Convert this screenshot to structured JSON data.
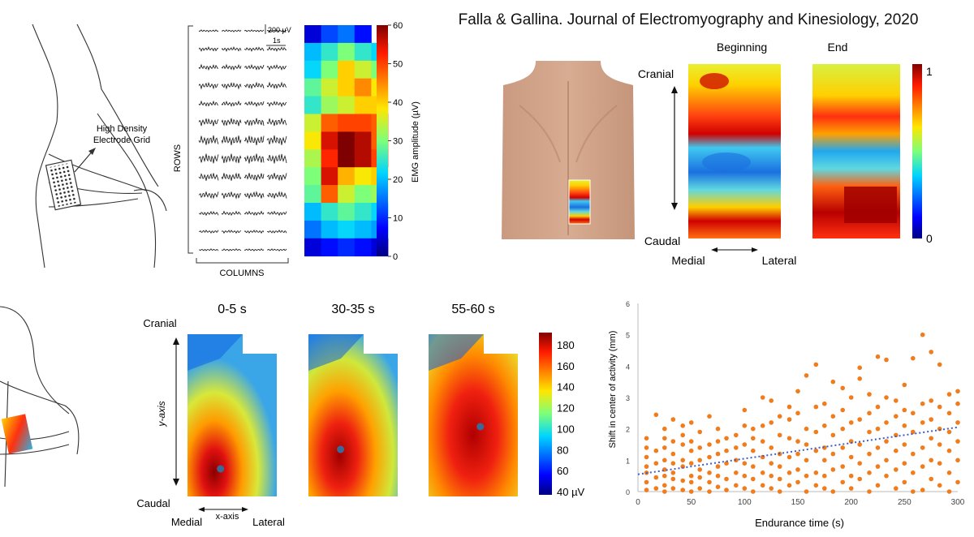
{
  "citation": "Falla & Gallina. Journal of Electromyography and Kinesiology, 2020",
  "panel_a": {
    "grid_label_line1": "High Density",
    "grid_label_line2": "Electrode Grid",
    "rows_label": "ROWS",
    "columns_label": "COLUMNS",
    "scale_uv": "200 µV",
    "scale_s": "1s",
    "colorbar": {
      "label": "EMG amplitude (µV)",
      "ticks": [
        "60",
        "50",
        "40",
        "30",
        "20",
        "10",
        "0"
      ]
    },
    "heatmap": [
      [
        5,
        12,
        15,
        8,
        0
      ],
      [
        20,
        25,
        30,
        25,
        22
      ],
      [
        22,
        30,
        40,
        35,
        30
      ],
      [
        28,
        35,
        40,
        45,
        38
      ],
      [
        25,
        32,
        35,
        40,
        40
      ],
      [
        35,
        48,
        50,
        50,
        48
      ],
      [
        38,
        55,
        60,
        57,
        48
      ],
      [
        33,
        52,
        60,
        57,
        50
      ],
      [
        30,
        55,
        42,
        38,
        40
      ],
      [
        28,
        48,
        35,
        30,
        32
      ],
      [
        20,
        25,
        28,
        25,
        22
      ],
      [
        15,
        20,
        22,
        20,
        18
      ],
      [
        5,
        8,
        10,
        8,
        5
      ]
    ]
  },
  "panel_b": {
    "cranial": "Cranial",
    "caudal": "Caudal",
    "medial": "Medial",
    "lateral": "Lateral",
    "beginning": "Beginning",
    "end": "End",
    "colorbar_max": "1",
    "colorbar_min": "0"
  },
  "panel_c": {
    "cranial": "Cranial",
    "caudal": "Caudal",
    "medial": "Medial",
    "lateral": "Lateral",
    "x_axis": "x-axis",
    "y_axis": "y-axis",
    "maps": [
      {
        "title": "0-5 s",
        "centroid": [
          0.37,
          0.83
        ]
      },
      {
        "title": "30-35 s",
        "centroid": [
          0.36,
          0.71
        ]
      },
      {
        "title": "55-60 s",
        "centroid": [
          0.58,
          0.57
        ]
      }
    ],
    "colorbar_ticks": [
      "180",
      "160",
      "140",
      "120",
      "100",
      "80",
      "60",
      "40 µV"
    ]
  },
  "chart_data": {
    "type": "scatter",
    "xlabel": "Endurance time  (s)",
    "ylabel": "Shift in center of activity (mm)",
    "xlim": [
      0,
      300
    ],
    "ylim": [
      0,
      6
    ],
    "xticks": [
      "0",
      "50",
      "100",
      "150",
      "200",
      "250",
      "300"
    ],
    "yticks": [
      "0",
      "1",
      "2",
      "3",
      "4",
      "5",
      "6"
    ],
    "grid": false,
    "trendline": {
      "x": [
        0,
        300
      ],
      "y": [
        0.55,
        2.05
      ]
    },
    "points": [
      [
        8,
        0.05
      ],
      [
        8,
        0.3
      ],
      [
        8,
        0.6
      ],
      [
        8,
        0.8
      ],
      [
        8,
        1.1
      ],
      [
        8,
        1.4
      ],
      [
        8,
        1.7
      ],
      [
        17,
        0.1
      ],
      [
        17,
        0.45
      ],
      [
        17,
        0.9
      ],
      [
        17,
        1.3
      ],
      [
        17,
        2.45
      ],
      [
        25,
        0.0
      ],
      [
        25,
        0.2
      ],
      [
        25,
        0.5
      ],
      [
        25,
        0.7
      ],
      [
        25,
        1.0
      ],
      [
        25,
        1.4
      ],
      [
        25,
        1.7
      ],
      [
        25,
        2.0
      ],
      [
        33,
        0.1
      ],
      [
        33,
        0.4
      ],
      [
        33,
        0.6
      ],
      [
        33,
        0.9
      ],
      [
        33,
        1.2
      ],
      [
        33,
        1.6
      ],
      [
        33,
        2.3
      ],
      [
        42,
        0.05
      ],
      [
        42,
        0.35
      ],
      [
        42,
        0.8
      ],
      [
        42,
        1.0
      ],
      [
        42,
        1.5
      ],
      [
        42,
        1.8
      ],
      [
        42,
        2.1
      ],
      [
        50,
        0.0
      ],
      [
        50,
        0.3
      ],
      [
        50,
        0.5
      ],
      [
        50,
        0.9
      ],
      [
        50,
        1.3
      ],
      [
        50,
        1.6
      ],
      [
        50,
        2.2
      ],
      [
        58,
        0.1
      ],
      [
        58,
        0.45
      ],
      [
        58,
        0.7
      ],
      [
        58,
        1.0
      ],
      [
        58,
        1.4
      ],
      [
        58,
        1.9
      ],
      [
        67,
        0.0
      ],
      [
        67,
        0.3
      ],
      [
        67,
        0.6
      ],
      [
        67,
        1.1
      ],
      [
        67,
        1.5
      ],
      [
        67,
        2.4
      ],
      [
        75,
        0.15
      ],
      [
        75,
        0.5
      ],
      [
        75,
        0.8
      ],
      [
        75,
        1.2
      ],
      [
        75,
        1.6
      ],
      [
        75,
        2.0
      ],
      [
        83,
        0.05
      ],
      [
        83,
        0.4
      ],
      [
        83,
        0.9
      ],
      [
        83,
        1.3
      ],
      [
        83,
        1.7
      ],
      [
        92,
        0.2
      ],
      [
        92,
        0.6
      ],
      [
        92,
        1.0
      ],
      [
        92,
        1.4
      ],
      [
        92,
        1.8
      ],
      [
        100,
        0.1
      ],
      [
        100,
        0.5
      ],
      [
        100,
        0.9
      ],
      [
        100,
        1.5
      ],
      [
        100,
        2.1
      ],
      [
        100,
        2.6
      ],
      [
        108,
        0.0
      ],
      [
        108,
        0.4
      ],
      [
        108,
        0.8
      ],
      [
        108,
        1.3
      ],
      [
        108,
        1.7
      ],
      [
        108,
        2.0
      ],
      [
        117,
        0.2
      ],
      [
        117,
        0.6
      ],
      [
        117,
        1.1
      ],
      [
        117,
        1.6
      ],
      [
        117,
        2.1
      ],
      [
        117,
        3.0
      ],
      [
        125,
        0.1
      ],
      [
        125,
        0.5
      ],
      [
        125,
        0.9
      ],
      [
        125,
        1.4
      ],
      [
        125,
        2.2
      ],
      [
        125,
        2.9
      ],
      [
        133,
        0.0
      ],
      [
        133,
        0.4
      ],
      [
        133,
        0.8
      ],
      [
        133,
        1.2
      ],
      [
        133,
        1.8
      ],
      [
        133,
        2.4
      ],
      [
        142,
        0.2
      ],
      [
        142,
        0.6
      ],
      [
        142,
        1.1
      ],
      [
        142,
        1.7
      ],
      [
        142,
        2.3
      ],
      [
        142,
        2.7
      ],
      [
        150,
        0.3
      ],
      [
        150,
        0.7
      ],
      [
        150,
        1.2
      ],
      [
        150,
        1.6
      ],
      [
        150,
        2.5
      ],
      [
        150,
        3.2
      ],
      [
        158,
        0.0
      ],
      [
        158,
        0.5
      ],
      [
        158,
        1.0
      ],
      [
        158,
        1.5
      ],
      [
        158,
        2.0
      ],
      [
        158,
        3.7
      ],
      [
        167,
        0.2
      ],
      [
        167,
        0.6
      ],
      [
        167,
        1.3
      ],
      [
        167,
        1.9
      ],
      [
        167,
        2.7
      ],
      [
        167,
        4.05
      ],
      [
        175,
        0.1
      ],
      [
        175,
        0.5
      ],
      [
        175,
        1.0
      ],
      [
        175,
        1.4
      ],
      [
        175,
        2.1
      ],
      [
        175,
        2.8
      ],
      [
        183,
        0.0
      ],
      [
        183,
        0.7
      ],
      [
        183,
        1.2
      ],
      [
        183,
        1.8
      ],
      [
        183,
        2.4
      ],
      [
        183,
        3.5
      ],
      [
        192,
        0.3
      ],
      [
        192,
        0.8
      ],
      [
        192,
        1.4
      ],
      [
        192,
        2.0
      ],
      [
        192,
        2.6
      ],
      [
        192,
        3.3
      ],
      [
        200,
        0.1
      ],
      [
        200,
        0.5
      ],
      [
        200,
        1.1
      ],
      [
        200,
        1.6
      ],
      [
        200,
        2.2
      ],
      [
        200,
        3.0
      ],
      [
        208,
        0.4
      ],
      [
        208,
        0.9
      ],
      [
        208,
        1.5
      ],
      [
        208,
        2.3
      ],
      [
        208,
        3.6
      ],
      [
        208,
        3.95
      ],
      [
        217,
        0.0
      ],
      [
        217,
        0.6
      ],
      [
        217,
        1.2
      ],
      [
        217,
        1.9
      ],
      [
        217,
        2.5
      ],
      [
        217,
        3.1
      ],
      [
        225,
        0.2
      ],
      [
        225,
        0.8
      ],
      [
        225,
        1.4
      ],
      [
        225,
        2.0
      ],
      [
        225,
        2.7
      ],
      [
        225,
        4.3
      ],
      [
        233,
        0.5
      ],
      [
        233,
        1.0
      ],
      [
        233,
        1.6
      ],
      [
        233,
        2.2
      ],
      [
        233,
        3.0
      ],
      [
        233,
        4.2
      ],
      [
        242,
        0.1
      ],
      [
        242,
        0.7
      ],
      [
        242,
        1.3
      ],
      [
        242,
        1.8
      ],
      [
        242,
        2.4
      ],
      [
        242,
        2.9
      ],
      [
        250,
        0.3
      ],
      [
        250,
        0.9
      ],
      [
        250,
        1.5
      ],
      [
        250,
        2.1
      ],
      [
        250,
        2.6
      ],
      [
        250,
        3.4
      ],
      [
        258,
        0.0
      ],
      [
        258,
        0.6
      ],
      [
        258,
        1.2
      ],
      [
        258,
        1.9
      ],
      [
        258,
        2.5
      ],
      [
        258,
        4.25
      ],
      [
        267,
        0.05
      ],
      [
        267,
        0.8
      ],
      [
        267,
        1.4
      ],
      [
        267,
        2.2
      ],
      [
        267,
        2.8
      ],
      [
        267,
        5.0
      ],
      [
        275,
        0.4
      ],
      [
        275,
        1.0
      ],
      [
        275,
        1.7
      ],
      [
        275,
        2.3
      ],
      [
        275,
        2.9
      ],
      [
        275,
        4.45
      ],
      [
        283,
        0.2
      ],
      [
        283,
        0.9
      ],
      [
        283,
        1.5
      ],
      [
        283,
        2.0
      ],
      [
        283,
        2.7
      ],
      [
        283,
        4.05
      ],
      [
        292,
        0.0
      ],
      [
        292,
        0.6
      ],
      [
        292,
        1.3
      ],
      [
        292,
        1.9
      ],
      [
        292,
        2.5
      ],
      [
        292,
        3.1
      ],
      [
        300,
        0.3
      ],
      [
        300,
        1.0
      ],
      [
        300,
        1.6
      ],
      [
        300,
        2.2
      ],
      [
        300,
        2.8
      ],
      [
        300,
        3.2
      ]
    ]
  }
}
